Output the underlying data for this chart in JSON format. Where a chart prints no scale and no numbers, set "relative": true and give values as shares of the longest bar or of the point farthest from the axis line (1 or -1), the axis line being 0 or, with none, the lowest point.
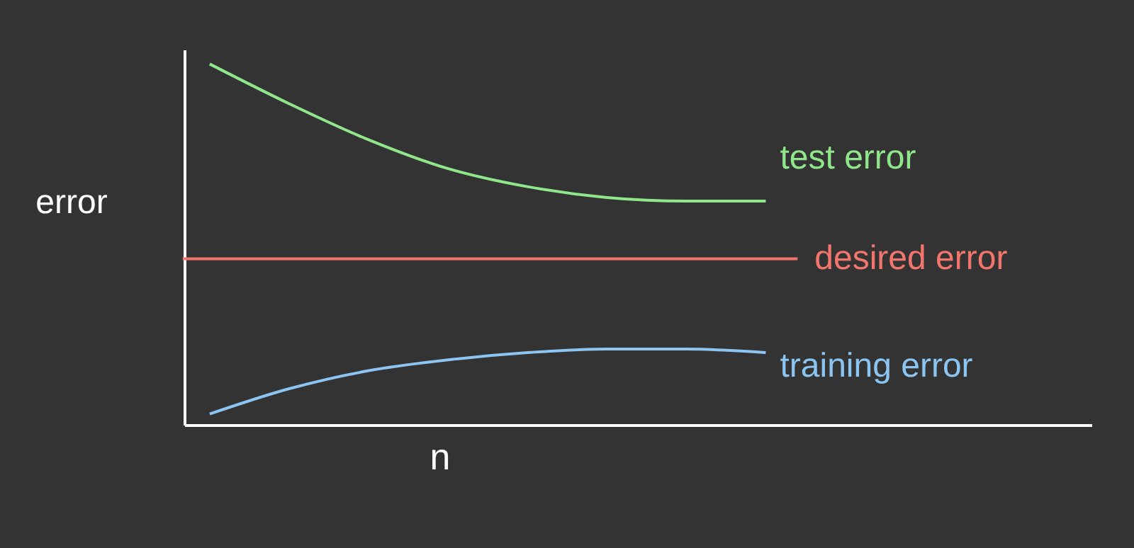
{
  "chart_data": {
    "type": "line",
    "relative": true,
    "xlabel": "n",
    "ylabel": "error",
    "categories": [
      null,
      null,
      null,
      null,
      null,
      null,
      null,
      null
    ],
    "series": [
      {
        "name": "test error",
        "color": "#90e68a",
        "values": [
          1,
          0.89,
          0.79,
          0.71,
          0.66,
          0.63,
          0.62,
          0.62
        ]
      },
      {
        "name": "training error",
        "color": "#8cc4f2",
        "values": [
          0.03,
          0.1,
          0.15,
          0.18,
          0.2,
          0.21,
          0.21,
          0.2
        ]
      }
    ],
    "ref_lines": [
      {
        "axis": "y",
        "value": 0.46,
        "label": "desired error",
        "color": "#f2766e"
      }
    ],
    "grid": false,
    "marker": "none",
    "line_style": "solid"
  }
}
